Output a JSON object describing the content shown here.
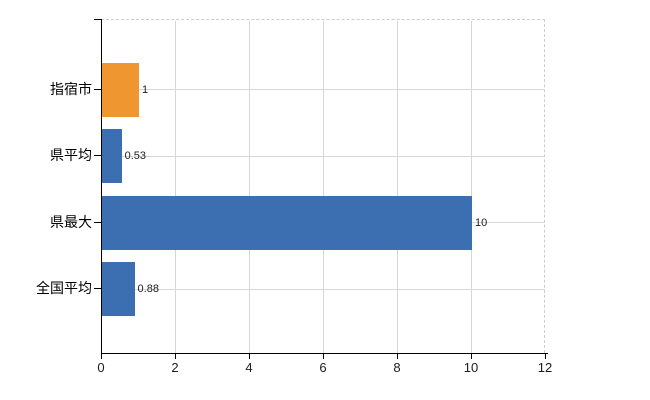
{
  "chart_data": {
    "type": "bar",
    "orientation": "horizontal",
    "title": "",
    "xlabel": "",
    "ylabel": "",
    "categories": [
      "指宿市",
      "県平均",
      "県最大",
      "全国平均"
    ],
    "values": [
      1,
      0.53,
      10,
      0.88
    ],
    "value_labels": [
      "1",
      "0.53",
      "10",
      "0.88"
    ],
    "bar_colors": [
      "#f0962f",
      "#3c6fb1",
      "#3c6fb1",
      "#3c6fb1"
    ],
    "x_axis": {
      "tick_labels": [
        "0",
        "2",
        "4",
        "6",
        "8",
        "10",
        "12"
      ],
      "tick_values": [
        0,
        2,
        4,
        6,
        8,
        10,
        12
      ],
      "min": 0,
      "max": 12
    },
    "grid": {
      "vertical": true,
      "horizontal": true,
      "top_right_border": "dashed"
    },
    "legend": null,
    "colors": {
      "highlight_bar": "#f0962f",
      "default_bar": "#3c6fb1",
      "gridline": "#d6d6d6",
      "dashed_border": "#cccccc",
      "axis": "#000000",
      "text": "#1c1c1c",
      "background": "#ffffff"
    }
  }
}
